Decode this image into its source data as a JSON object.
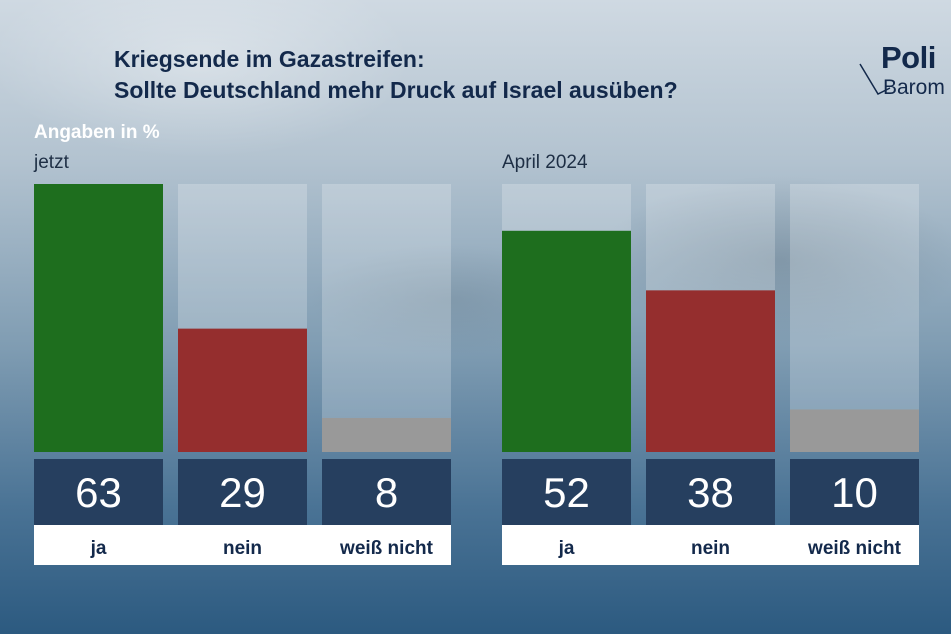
{
  "title_line1": "Kriegsende im Gazastreifen:",
  "title_line2": "Sollte Deutschland mehr Druck auf Israel ausüben?",
  "unit_label": "Angaben in %",
  "logo": {
    "line1": "Poli",
    "line2": "Barom"
  },
  "colors": {
    "ja": "#1e6e1e",
    "nein": "#952e2e",
    "weiss_nicht": "#999999",
    "value_box": "#263f5f",
    "title": "#13294b"
  },
  "chart_data": [
    {
      "type": "bar",
      "panel_label": "jetzt",
      "categories": [
        "ja",
        "nein",
        "weiß nicht"
      ],
      "values": [
        63,
        29,
        8
      ],
      "ylim": [
        0,
        63
      ],
      "grid": false
    },
    {
      "type": "bar",
      "panel_label": "April 2024",
      "categories": [
        "ja",
        "nein",
        "weiß nicht"
      ],
      "values": [
        52,
        38,
        10
      ],
      "ylim": [
        0,
        63
      ],
      "grid": false
    }
  ]
}
